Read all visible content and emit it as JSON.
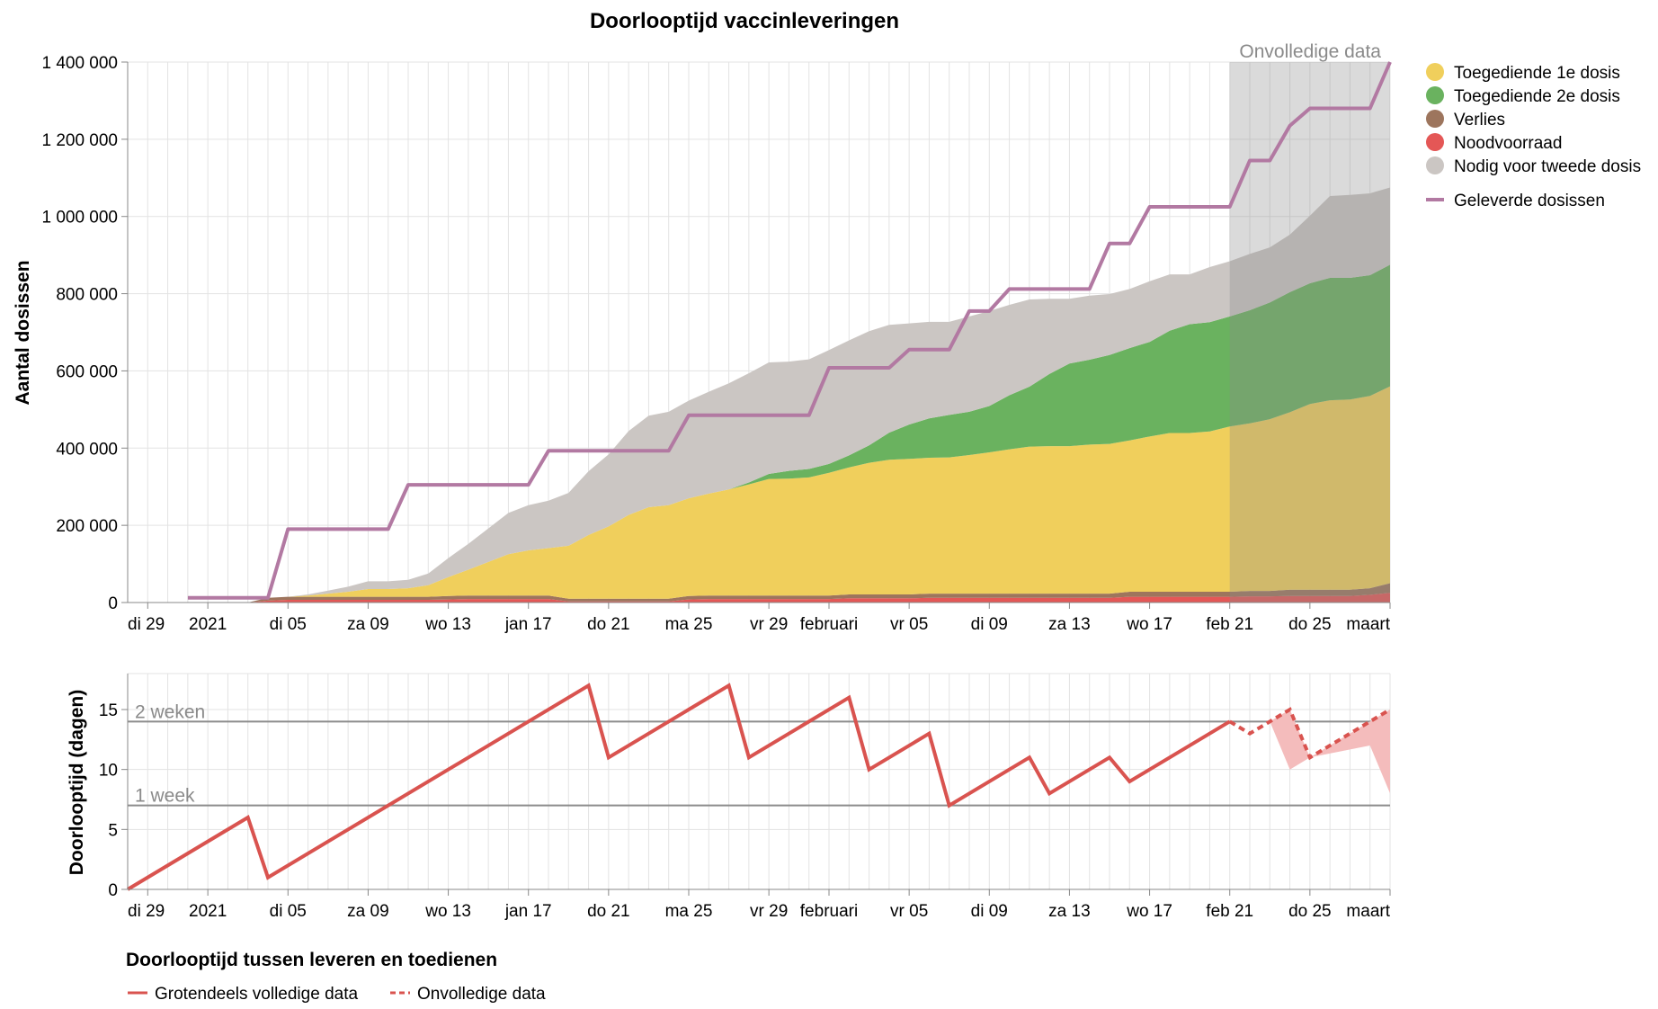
{
  "chart_data": [
    {
      "type": "area",
      "title": "Doorlooptijd vaccinleveringen",
      "ylabel": "Aantal dosissen",
      "ylim": [
        0,
        1400000
      ],
      "yticks": [
        0,
        200000,
        400000,
        600000,
        800000,
        1000000,
        1200000,
        1400000
      ],
      "ytick_labels": [
        "0",
        "200 000",
        "400 000",
        "600 000",
        "800 000",
        "1 000 000",
        "1 200 000",
        "1 400 000"
      ],
      "xlim": [
        "2020-12-28",
        "2021-03-01"
      ],
      "xticks": [
        {
          "date": "2020-12-29",
          "label": "di 29"
        },
        {
          "date": "2021-01-01",
          "label": "2021"
        },
        {
          "date": "2021-01-05",
          "label": "di 05"
        },
        {
          "date": "2021-01-09",
          "label": "za 09"
        },
        {
          "date": "2021-01-13",
          "label": "wo 13"
        },
        {
          "date": "2021-01-17",
          "label": "jan 17"
        },
        {
          "date": "2021-01-21",
          "label": "do 21"
        },
        {
          "date": "2021-01-25",
          "label": "ma 25"
        },
        {
          "date": "2021-01-29",
          "label": "vr 29"
        },
        {
          "date": "2021-02-01",
          "label": "februari"
        },
        {
          "date": "2021-02-05",
          "label": "vr 05"
        },
        {
          "date": "2021-02-09",
          "label": "di 09"
        },
        {
          "date": "2021-02-13",
          "label": "za 13"
        },
        {
          "date": "2021-02-17",
          "label": "wo 17"
        },
        {
          "date": "2021-02-21",
          "label": "feb 21"
        },
        {
          "date": "2021-02-25",
          "label": "do 25"
        },
        {
          "date": "2021-03-01",
          "label": "maart"
        }
      ],
      "grid": true,
      "legend_position": "right",
      "incomplete_region": {
        "from": "2021-02-21",
        "to": "2021-03-01",
        "label": "Onvolledige data"
      },
      "x": [
        "2020-12-31",
        "2021-01-01",
        "2021-01-02",
        "2021-01-03",
        "2021-01-04",
        "2021-01-05",
        "2021-01-06",
        "2021-01-07",
        "2021-01-08",
        "2021-01-09",
        "2021-01-10",
        "2021-01-11",
        "2021-01-12",
        "2021-01-13",
        "2021-01-14",
        "2021-01-15",
        "2021-01-16",
        "2021-01-17",
        "2021-01-18",
        "2021-01-19",
        "2021-01-20",
        "2021-01-21",
        "2021-01-22",
        "2021-01-23",
        "2021-01-24",
        "2021-01-25",
        "2021-01-26",
        "2021-01-27",
        "2021-01-28",
        "2021-01-29",
        "2021-01-30",
        "2021-01-31",
        "2021-02-01",
        "2021-02-02",
        "2021-02-03",
        "2021-02-04",
        "2021-02-05",
        "2021-02-06",
        "2021-02-07",
        "2021-02-08",
        "2021-02-09",
        "2021-02-10",
        "2021-02-11",
        "2021-02-12",
        "2021-02-13",
        "2021-02-14",
        "2021-02-15",
        "2021-02-16",
        "2021-02-17",
        "2021-02-18",
        "2021-02-19",
        "2021-02-20",
        "2021-02-21",
        "2021-02-22",
        "2021-02-23",
        "2021-02-24",
        "2021-02-25",
        "2021-02-26",
        "2021-02-27",
        "2021-02-28",
        "2021-03-01"
      ],
      "series": [
        {
          "name": "Noodvoorraad",
          "color": "#e45756",
          "values": [
            0,
            0,
            0,
            0,
            5000,
            7000,
            7000,
            7000,
            7000,
            7000,
            7000,
            7000,
            7000,
            8000,
            9000,
            9000,
            9000,
            9000,
            9000,
            3000,
            3000,
            3000,
            3000,
            3000,
            3000,
            8000,
            9000,
            9000,
            9000,
            9000,
            9000,
            9000,
            9000,
            11000,
            11000,
            11000,
            11000,
            12000,
            12000,
            12000,
            12000,
            12000,
            12000,
            12000,
            12000,
            12000,
            12000,
            15000,
            15000,
            15000,
            15000,
            15000,
            15000,
            16000,
            16000,
            17000,
            17000,
            17000,
            17000,
            20000,
            25000
          ]
        },
        {
          "name": "Verlies",
          "color": "#9d755d",
          "values": [
            0,
            0,
            0,
            0,
            7000,
            8000,
            8000,
            8000,
            8000,
            8000,
            8000,
            8000,
            8000,
            9000,
            9000,
            9000,
            9000,
            9000,
            9000,
            7000,
            7000,
            7000,
            7000,
            7000,
            7000,
            9000,
            9000,
            9000,
            9000,
            9000,
            9000,
            9000,
            9000,
            10000,
            10000,
            10000,
            10000,
            11000,
            11000,
            11000,
            11000,
            11000,
            11000,
            11000,
            11000,
            11000,
            11000,
            13000,
            13000,
            13000,
            13000,
            13000,
            13000,
            14000,
            14000,
            16000,
            16000,
            16000,
            16000,
            17000,
            25000
          ]
        },
        {
          "name": "Toegediende 1e dosis",
          "color": "#f0cf5c",
          "values": [
            0,
            0,
            0,
            0,
            0,
            0,
            3000,
            8000,
            13000,
            20000,
            20000,
            22000,
            30000,
            49000,
            67000,
            87000,
            107000,
            117000,
            123000,
            137000,
            165000,
            187000,
            217000,
            237000,
            242000,
            253000,
            264000,
            275000,
            288000,
            302000,
            303000,
            306000,
            318000,
            329000,
            341000,
            349000,
            351000,
            352000,
            353000,
            359000,
            366000,
            374000,
            381000,
            382000,
            382000,
            386000,
            388000,
            392000,
            402000,
            411000,
            411000,
            415000,
            428000,
            434000,
            445000,
            460000,
            481000,
            491000,
            493000,
            498000,
            510000
          ]
        },
        {
          "name": "Toegediende 2e dosis",
          "color": "#6ab25f",
          "values": [
            0,
            0,
            0,
            0,
            0,
            0,
            0,
            0,
            0,
            0,
            0,
            0,
            0,
            0,
            0,
            0,
            0,
            0,
            0,
            0,
            0,
            0,
            0,
            0,
            0,
            0,
            0,
            0,
            5000,
            13000,
            20000,
            22000,
            23000,
            31000,
            45000,
            70000,
            89000,
            102000,
            110000,
            112000,
            120000,
            140000,
            155000,
            187000,
            214000,
            220000,
            230000,
            239000,
            245000,
            265000,
            282000,
            283000,
            285000,
            293000,
            302000,
            311000,
            313000,
            317000,
            315000,
            313000,
            315000
          ]
        },
        {
          "name": "Nodig voor tweede dosis",
          "color": "#cbc6c3",
          "values": [
            0,
            0,
            0,
            0,
            0,
            0,
            3000,
            8000,
            13000,
            20000,
            20000,
            22000,
            30000,
            49000,
            67000,
            87000,
            107000,
            117000,
            123000,
            137000,
            165000,
            187000,
            217000,
            237000,
            242000,
            253000,
            264000,
            275000,
            283000,
            289000,
            283000,
            284000,
            295000,
            298000,
            296000,
            279000,
            262000,
            250000,
            241000,
            247000,
            246000,
            234000,
            226000,
            195000,
            168000,
            166000,
            158000,
            153000,
            157000,
            146000,
            129000,
            143000,
            143000,
            146000,
            143000,
            149000,
            175000,
            212000,
            215000,
            212000,
            200000
          ]
        },
        {
          "name": "Geleverde dosissen",
          "color": "#b279a2",
          "type": "step-line",
          "values": [
            12000,
            12000,
            12000,
            12000,
            12000,
            190000,
            190000,
            190000,
            190000,
            190000,
            190000,
            305000,
            305000,
            305000,
            305000,
            305000,
            305000,
            305000,
            393000,
            393000,
            393000,
            393000,
            393000,
            393000,
            393000,
            485000,
            485000,
            485000,
            485000,
            485000,
            485000,
            485000,
            608000,
            608000,
            608000,
            608000,
            655000,
            655000,
            655000,
            755000,
            755000,
            812000,
            812000,
            812000,
            812000,
            812000,
            930000,
            930000,
            1025000,
            1025000,
            1025000,
            1025000,
            1025000,
            1145000,
            1145000,
            1235000,
            1280000,
            1280000,
            1280000,
            1280000,
            1400000
          ]
        }
      ],
      "legend": [
        {
          "label": "Toegediende 1e dosis",
          "color": "#f0cf5c",
          "symbol": "circle"
        },
        {
          "label": "Toegediende 2e dosis",
          "color": "#6ab25f",
          "symbol": "circle"
        },
        {
          "label": "Verlies",
          "color": "#9d755d",
          "symbol": "circle"
        },
        {
          "label": "Noodvoorraad",
          "color": "#e45756",
          "symbol": "circle"
        },
        {
          "label": "Nodig voor tweede dosis",
          "color": "#cbc6c3",
          "symbol": "circle"
        },
        {
          "label": "Geleverde dosissen",
          "color": "#b279a2",
          "symbol": "line"
        }
      ]
    },
    {
      "type": "line",
      "ylabel": "Doorlooptijd (dagen)",
      "ylim": [
        0,
        18
      ],
      "yticks": [
        0,
        5,
        10,
        15
      ],
      "ytick_labels": [
        "0",
        "5",
        "10",
        "15"
      ],
      "xlim": [
        "2020-12-28",
        "2021-03-01"
      ],
      "reference_lines": [
        {
          "value": 14,
          "label": "2 weken"
        },
        {
          "value": 7,
          "label": "1 week"
        }
      ],
      "series": [
        {
          "name": "Grotendeels volledige data",
          "color": "#d9534f",
          "style": "solid",
          "points": [
            [
              "2020-12-28",
              0
            ],
            [
              "2021-01-03",
              6
            ],
            [
              "2021-01-04",
              1
            ],
            [
              "2021-01-20",
              17
            ],
            [
              "2021-01-21",
              11
            ],
            [
              "2021-01-27",
              17
            ],
            [
              "2021-01-28",
              11
            ],
            [
              "2021-02-02",
              16
            ],
            [
              "2021-02-03",
              10
            ],
            [
              "2021-02-06",
              13
            ],
            [
              "2021-02-07",
              7
            ],
            [
              "2021-02-11",
              11
            ],
            [
              "2021-02-12",
              8
            ],
            [
              "2021-02-15",
              11
            ],
            [
              "2021-02-16",
              9
            ],
            [
              "2021-02-21",
              14
            ]
          ]
        },
        {
          "name": "Onvolledige data",
          "color": "#d9534f",
          "style": "dashed",
          "points": [
            [
              "2021-02-21",
              14
            ],
            [
              "2021-02-22",
              13
            ],
            [
              "2021-02-24",
              15
            ],
            [
              "2021-02-25",
              11
            ],
            [
              "2021-03-01",
              15
            ]
          ]
        }
      ],
      "uncertainty_band": {
        "color": "#f4bcbc",
        "upper": [
          [
            "2021-02-23",
            14
          ],
          [
            "2021-02-24",
            15
          ],
          [
            "2021-02-25",
            11
          ],
          [
            "2021-03-01",
            15
          ]
        ],
        "lower": [
          [
            "2021-02-23",
            14
          ],
          [
            "2021-02-24",
            10
          ],
          [
            "2021-02-25",
            11
          ],
          [
            "2021-02-28",
            12
          ],
          [
            "2021-03-01",
            8
          ]
        ]
      },
      "legend_title": "Doorlooptijd tussen leveren en toedienen",
      "legend": [
        {
          "label": "Grotendeels volledige data",
          "style": "solid",
          "color": "#d9534f"
        },
        {
          "label": "Onvolledige data",
          "style": "dashed",
          "color": "#d9534f"
        }
      ]
    }
  ]
}
